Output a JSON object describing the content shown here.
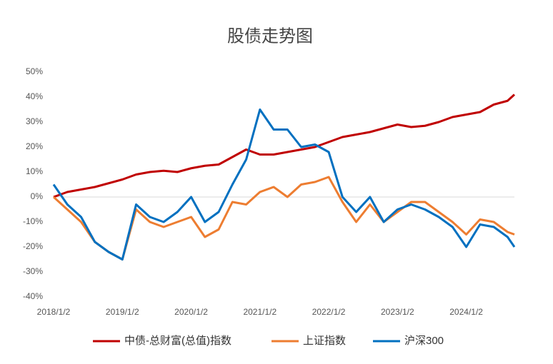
{
  "chart_data": {
    "type": "line",
    "title": "股债走势图",
    "x": [
      2018.0,
      2018.2,
      2018.4,
      2018.6,
      2018.8,
      2019.0,
      2019.2,
      2019.4,
      2019.6,
      2019.8,
      2020.0,
      2020.2,
      2020.4,
      2020.6,
      2020.8,
      2021.0,
      2021.2,
      2021.4,
      2021.6,
      2021.8,
      2022.0,
      2022.2,
      2022.4,
      2022.6,
      2022.8,
      2023.0,
      2023.2,
      2023.4,
      2023.6,
      2023.8,
      2024.0,
      2024.2,
      2024.4,
      2024.6,
      2024.7
    ],
    "series": [
      {
        "name": "中债-总财富(总值)指数",
        "color": "#c00000",
        "values": [
          0,
          2,
          3,
          4,
          5.5,
          7,
          9,
          10,
          10.5,
          10,
          11.5,
          12.5,
          13,
          16,
          19,
          17,
          17,
          18,
          19,
          20,
          22,
          24,
          25,
          26,
          27.5,
          29,
          28,
          28.5,
          30,
          32,
          33,
          34,
          37,
          38.5,
          41
        ]
      },
      {
        "name": "上证指数",
        "color": "#ed7d31",
        "values": [
          0,
          -5,
          -10,
          -18,
          -22,
          -25,
          -5,
          -10,
          -12,
          -10,
          -8,
          -16,
          -13,
          -2,
          -3,
          2,
          4,
          0,
          5,
          6,
          8,
          -2,
          -10,
          -3,
          -10,
          -6,
          -2,
          -2,
          -6,
          -10,
          -15,
          -9,
          -10,
          -14,
          -15
        ]
      },
      {
        "name": "沪深300",
        "color": "#0070c0",
        "values": [
          5,
          -3,
          -8,
          -18,
          -22,
          -25,
          -3,
          -8,
          -10,
          -6,
          0,
          -10,
          -6,
          5,
          15,
          35,
          27,
          27,
          20,
          21,
          18,
          0,
          -6,
          0,
          -10,
          -5,
          -3,
          -5,
          -8,
          -12,
          -20,
          -11,
          -12,
          -16,
          -20
        ]
      }
    ],
    "xlim": [
      2018.0,
      2024.7
    ],
    "xticks": [
      {
        "value": 2018.0,
        "label": "2018/1/2"
      },
      {
        "value": 2019.0,
        "label": "2019/1/2"
      },
      {
        "value": 2020.0,
        "label": "2020/1/2"
      },
      {
        "value": 2021.0,
        "label": "2021/1/2"
      },
      {
        "value": 2022.0,
        "label": "2022/1/2"
      },
      {
        "value": 2023.0,
        "label": "2023/1/2"
      },
      {
        "value": 2024.0,
        "label": "2024/1/2"
      }
    ],
    "ylim": [
      -40,
      50
    ],
    "yticks": [
      {
        "value": -40,
        "label": "-40%"
      },
      {
        "value": -30,
        "label": "-30%"
      },
      {
        "value": -20,
        "label": "-20%"
      },
      {
        "value": -10,
        "label": "-10%"
      },
      {
        "value": 0,
        "label": "0%"
      },
      {
        "value": 10,
        "label": "10%"
      },
      {
        "value": 20,
        "label": "20%"
      },
      {
        "value": 30,
        "label": "30%"
      },
      {
        "value": 40,
        "label": "40%"
      },
      {
        "value": 50,
        "label": "50%"
      }
    ],
    "legend": "bottom"
  }
}
